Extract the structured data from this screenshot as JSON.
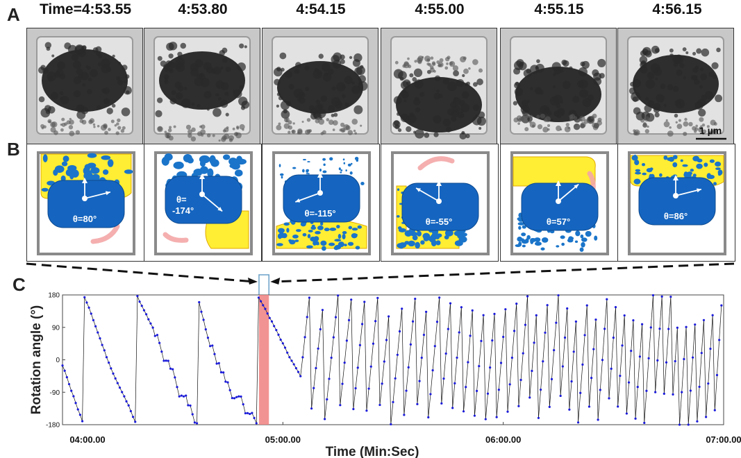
{
  "panels": {
    "a": "A",
    "b": "B",
    "c": "C"
  },
  "frames": [
    {
      "time": "Time=4:53.55",
      "theta": "θ=80°",
      "type": "top"
    },
    {
      "time": "4:53.80",
      "theta": "θ=",
      "theta2": "-174°",
      "type": "right"
    },
    {
      "time": "4:54.15",
      "theta": "θ=-115°",
      "type": "bottom"
    },
    {
      "time": "4:55.00",
      "theta": "θ=-55°",
      "type": "left"
    },
    {
      "time": "4:55.15",
      "theta": "θ=57°",
      "type": "topleft"
    },
    {
      "time": "4:56.15",
      "theta": "θ=86°",
      "type": "top2"
    }
  ],
  "scale_bar": "1 µm",
  "chart_data": {
    "type": "scatter",
    "xlabel": "Time (Min:Sec)",
    "ylabel": "Rotation angle (°)",
    "ylim": [
      -180,
      180
    ],
    "yticks": [
      "180",
      "90",
      "0",
      "-90",
      "-180"
    ],
    "xticks": [
      "04:00.00",
      "05:00.00",
      "06:00.00",
      "07:00.00"
    ],
    "xlim_seconds": [
      240,
      420
    ],
    "highlight_seconds": [
      293.5,
      296.2
    ],
    "series_color": "#1a1adb",
    "highlight_color": "#f08080"
  }
}
